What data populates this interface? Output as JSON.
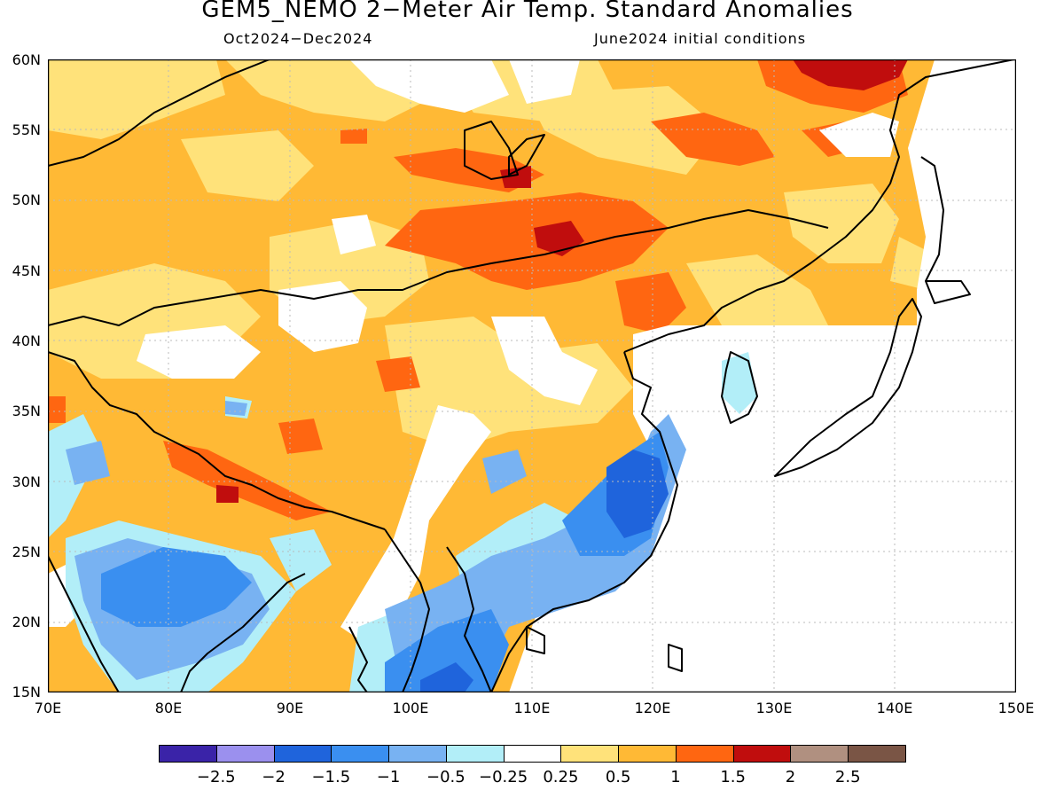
{
  "title": "GEM5_NEMO 2−Meter Air Temp. Standard Anomalies",
  "subtitle_left": "Oct2024−Dec2024",
  "subtitle_right": "June2024 initial conditions",
  "lat_labels": [
    "60N",
    "55N",
    "50N",
    "45N",
    "40N",
    "35N",
    "30N",
    "25N",
    "20N",
    "15N"
  ],
  "lon_labels": [
    "70E",
    "80E",
    "90E",
    "100E",
    "110E",
    "120E",
    "130E",
    "140E",
    "150E"
  ],
  "colorbar": {
    "colors": [
      "#3a23a8",
      "#9b90ee",
      "#1f64dc",
      "#3a8ff0",
      "#78b2f2",
      "#b2eef8",
      "#ffffff",
      "#ffe27a",
      "#ffb935",
      "#ff6611",
      "#c00d0d",
      "#b09080",
      "#7a5545"
    ],
    "labels": [
      "−2.5",
      "−2",
      "−1.5",
      "−1",
      "−0.5",
      "−0.25",
      "0.25",
      "0.5",
      "1",
      "1.5",
      "2",
      "2.5"
    ]
  },
  "legend_colors": {
    "land_outline": "#000000",
    "grid": "#bbbbbb"
  }
}
